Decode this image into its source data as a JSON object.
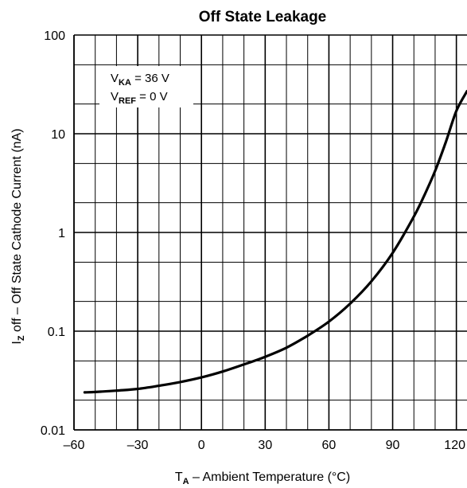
{
  "chart_data": {
    "type": "line",
    "title": "Off State Leakage",
    "xlabel": {
      "symbol": "T",
      "subscript": "A",
      "text": " – Ambient Temperature (°C)"
    },
    "ylabel": {
      "symbol": "I",
      "subscript": "Z",
      "text": " off – Off State Cathode Current (nA)"
    },
    "xlim": [
      -60,
      125
    ],
    "ylim": [
      0.01,
      100
    ],
    "yscale": "log",
    "grid": true,
    "x_ticks": [
      -60,
      -30,
      0,
      30,
      60,
      90,
      120
    ],
    "x_tick_labels": [
      "–60",
      "–30",
      "0",
      "30",
      "60",
      "90",
      "120"
    ],
    "y_ticks": [
      0.01,
      0.1,
      1,
      10,
      100
    ],
    "y_tick_labels": [
      "0.01",
      "0.1",
      "1",
      "10",
      "100"
    ],
    "annotation": {
      "line1": {
        "symbol": "V",
        "subscript": "KA",
        "text": " = 36 V"
      },
      "line2": {
        "symbol": "V",
        "subscript": "REF",
        "text": " = 0 V"
      }
    },
    "series": [
      {
        "x": [
          -55,
          -50,
          -40,
          -30,
          -20,
          -10,
          0,
          10,
          20,
          30,
          40,
          50,
          60,
          70,
          80,
          90,
          100,
          105,
          110,
          115,
          120,
          125
        ],
        "y": [
          0.024,
          0.0242,
          0.025,
          0.026,
          0.028,
          0.0305,
          0.034,
          0.039,
          0.046,
          0.055,
          0.068,
          0.09,
          0.125,
          0.19,
          0.32,
          0.62,
          1.45,
          2.4,
          4.2,
          8.2,
          17,
          27
        ]
      }
    ]
  }
}
